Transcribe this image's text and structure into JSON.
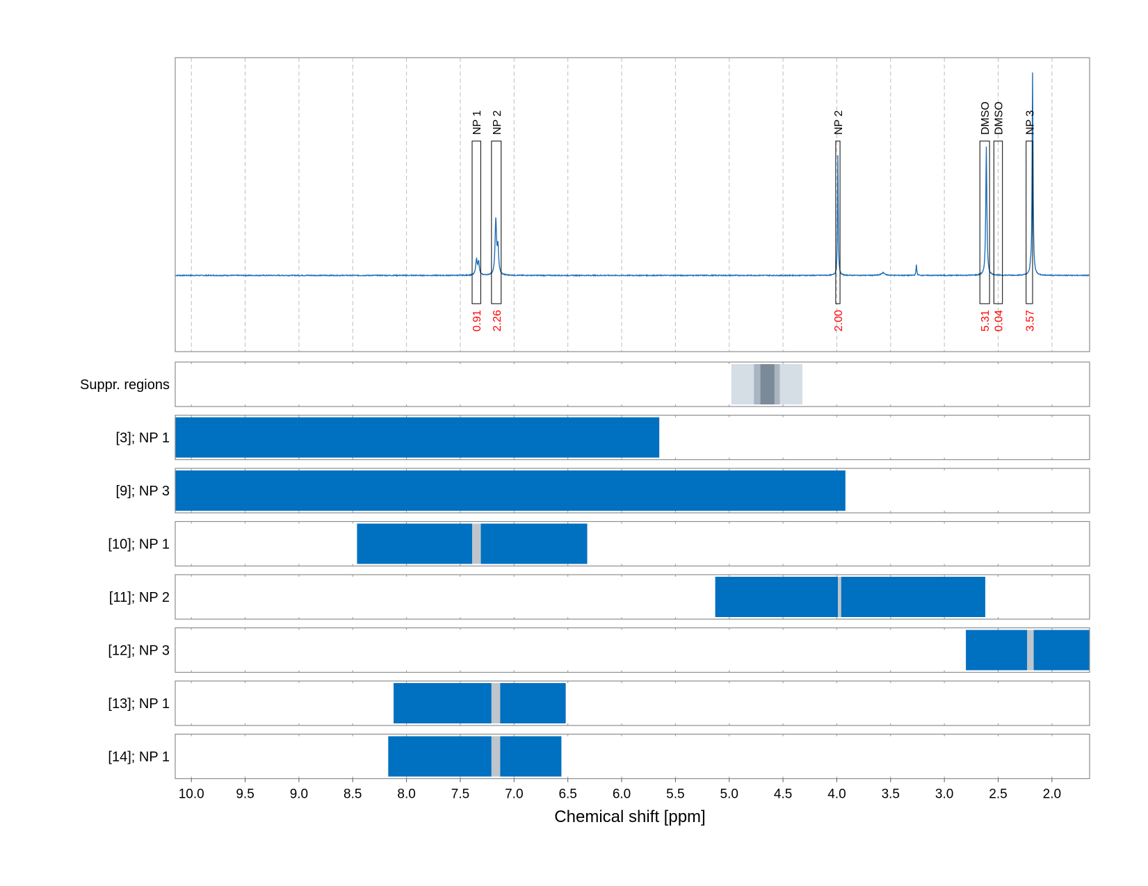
{
  "chart_data": {
    "type": "nmr-spectrum-with-region-tracks",
    "xlabel": "Chemical shift [ppm]",
    "x_reversed": true,
    "xlim": [
      10.15,
      1.65
    ],
    "x_ticks": [
      "10.0",
      "9.5",
      "9.0",
      "8.5",
      "8.0",
      "7.5",
      "7.0",
      "6.5",
      "6.0",
      "5.5",
      "5.0",
      "4.5",
      "4.0",
      "3.5",
      "3.0",
      "2.5",
      "2.0"
    ],
    "grid": true,
    "colors": {
      "spectrum": "#1f6fb5",
      "bar": "#0070c0",
      "gap": "#bfc5cc",
      "annotation_value": "#ff0000",
      "suppr_light": "#d5dde5",
      "suppr_mid": "#a9b5c0",
      "suppr_dark": "#7a8a98"
    },
    "spectrum": {
      "baseline": 0,
      "ylim": [
        -0.35,
        1.0
      ],
      "peaks": [
        {
          "ppm": 7.35,
          "height": 0.07,
          "width": 0.008
        },
        {
          "ppm": 7.33,
          "height": 0.06,
          "width": 0.008
        },
        {
          "ppm": 7.17,
          "height": 0.25,
          "width": 0.008
        },
        {
          "ppm": 7.15,
          "height": 0.12,
          "width": 0.008
        },
        {
          "ppm": 3.99,
          "height": 0.55,
          "width": 0.004
        },
        {
          "ppm": 3.57,
          "height": 0.012,
          "width": 0.02
        },
        {
          "ppm": 3.26,
          "height": 0.05,
          "width": 0.004
        },
        {
          "ppm": 2.61,
          "height": 0.59,
          "width": 0.006
        },
        {
          "ppm": 2.18,
          "height": 0.93,
          "width": 0.005
        },
        {
          "ppm": 2.2,
          "height": 0.02,
          "width": 0.004
        }
      ]
    },
    "annotations": [
      {
        "label": "NP 1",
        "value": "0.91",
        "from": 7.39,
        "to": 7.31
      },
      {
        "label": "NP 2",
        "value": "2.26",
        "from": 7.21,
        "to": 7.12
      },
      {
        "label": "NP 2",
        "value": "2.00",
        "from": 4.01,
        "to": 3.97
      },
      {
        "label": "DMSO",
        "value": "5.31",
        "from": 2.67,
        "to": 2.58
      },
      {
        "label": "DMSO",
        "value": "0.04",
        "from": 2.54,
        "to": 2.46
      },
      {
        "label": "NP 3",
        "value": "3.57",
        "from": 2.24,
        "to": 2.18
      }
    ],
    "suppr_regions": {
      "label": "Suppr. regions",
      "bands": [
        {
          "from": 4.98,
          "to": 4.32,
          "shade": "light"
        },
        {
          "from": 4.77,
          "to": 4.53,
          "shade": "mid"
        },
        {
          "from": 4.71,
          "to": 4.58,
          "shade": "dark"
        }
      ]
    },
    "tracks": [
      {
        "label": "[3]; NP 1",
        "bars": [
          {
            "from": 10.15,
            "to": 5.65
          }
        ]
      },
      {
        "label": "[9]; NP 3",
        "bars": [
          {
            "from": 10.15,
            "to": 3.92
          }
        ]
      },
      {
        "label": "[10]; NP 1",
        "bars": [
          {
            "from": 8.46,
            "to": 7.39
          },
          {
            "from": 7.31,
            "to": 6.32
          }
        ],
        "gap": {
          "from": 7.39,
          "to": 7.31
        }
      },
      {
        "label": "[11]; NP 2",
        "bars": [
          {
            "from": 5.13,
            "to": 3.99
          },
          {
            "from": 3.96,
            "to": 2.62
          }
        ],
        "gap": {
          "from": 3.99,
          "to": 3.96
        }
      },
      {
        "label": "[12]; NP 3",
        "bars": [
          {
            "from": 2.8,
            "to": 2.23
          },
          {
            "from": 2.17,
            "to": 1.65
          }
        ],
        "gap": {
          "from": 2.23,
          "to": 2.17
        }
      },
      {
        "label": "[13]; NP 1",
        "bars": [
          {
            "from": 8.12,
            "to": 7.21
          },
          {
            "from": 7.13,
            "to": 6.52
          }
        ],
        "gap": {
          "from": 7.21,
          "to": 7.13
        }
      },
      {
        "label": "[14]; NP 1",
        "bars": [
          {
            "from": 8.17,
            "to": 7.21
          },
          {
            "from": 7.13,
            "to": 6.56
          }
        ],
        "gap": {
          "from": 7.21,
          "to": 7.13
        }
      }
    ]
  }
}
